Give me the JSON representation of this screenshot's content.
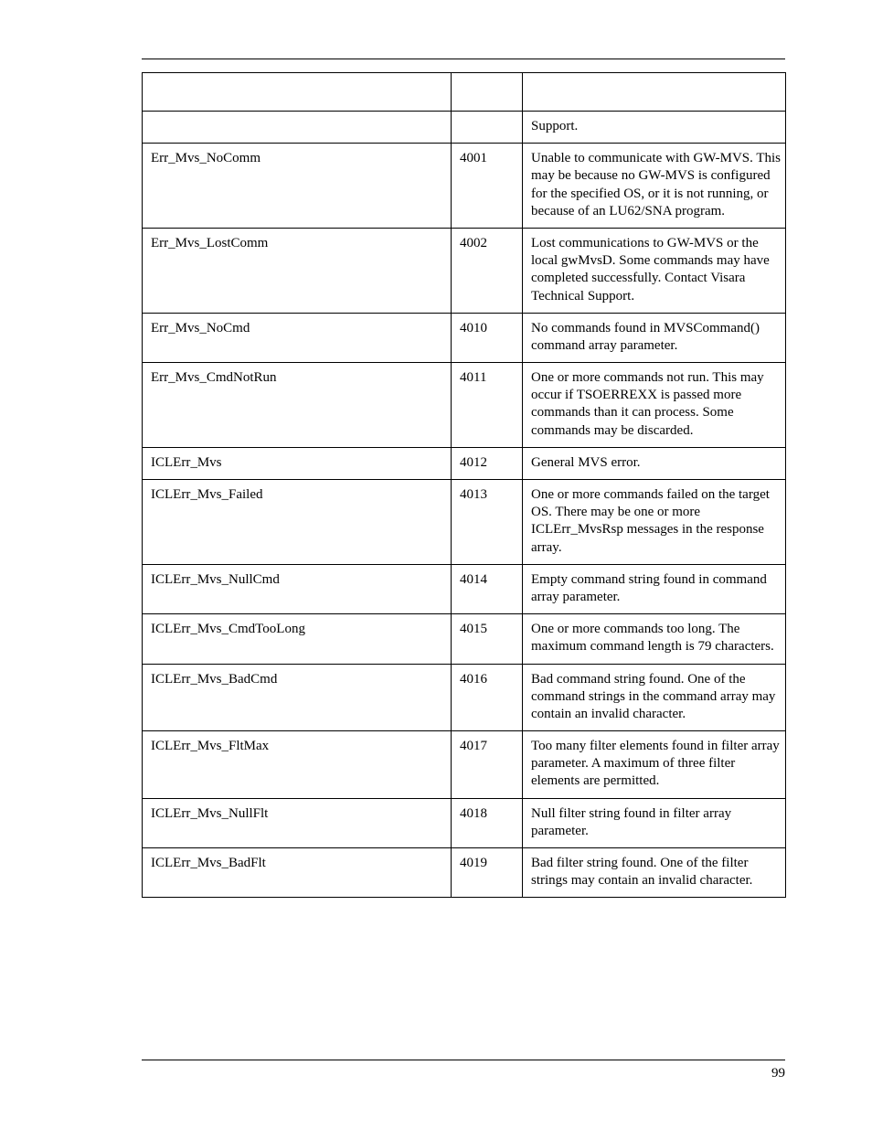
{
  "page_number": "99",
  "table": {
    "columns": [
      "",
      "",
      ""
    ],
    "rows": [
      {
        "name": "",
        "code": "",
        "desc": "Support."
      },
      {
        "name": "Err_Mvs_NoComm",
        "code": "4001",
        "desc": "Unable to communicate with GW-MVS.  This may be because no GW-MVS is configured for the specified OS, or it is not running, or because of an LU62/SNA program."
      },
      {
        "name": "Err_Mvs_LostComm",
        "code": "4002",
        "desc": "Lost communications to GW-MVS or the local gwMvsD. Some commands may have completed successfully. Contact Visara Technical Support."
      },
      {
        "name": "Err_Mvs_NoCmd",
        "code": "4010",
        "desc": "No commands found in MVSCommand() command array parameter."
      },
      {
        "name": "Err_Mvs_CmdNotRun",
        "code": "4011",
        "desc": "One or more commands not run.  This may occur if TSOERREXX is passed more commands than it can process. Some commands may be discarded."
      },
      {
        "name": "ICLErr_Mvs",
        "code": "4012",
        "desc": "General MVS error."
      },
      {
        "name": "ICLErr_Mvs_Failed",
        "code": "4013",
        "desc": "One or more commands failed on the target OS.  There may be one or more ICLErr_MvsRsp messages in the response array."
      },
      {
        "name": "ICLErr_Mvs_NullCmd",
        "code": "4014",
        "desc": "Empty command string found in command array parameter."
      },
      {
        "name": "ICLErr_Mvs_CmdTooLong",
        "code": "4015",
        "desc": "One or more commands too long. The maximum command length is 79 characters."
      },
      {
        "name": "ICLErr_Mvs_BadCmd",
        "code": "4016",
        "desc": "Bad command string found. One of the command strings in the command array may contain an invalid character."
      },
      {
        "name": "ICLErr_Mvs_FltMax",
        "code": "4017",
        "desc": "Too many filter elements found in filter array parameter.  A maximum of three filter elements are permitted."
      },
      {
        "name": "ICLErr_Mvs_NullFlt",
        "code": "4018",
        "desc": "Null filter string found in filter array parameter."
      },
      {
        "name": "ICLErr_Mvs_BadFlt",
        "code": "4019",
        "desc": "Bad filter string found.  One of the filter strings may contain an invalid character."
      }
    ]
  }
}
